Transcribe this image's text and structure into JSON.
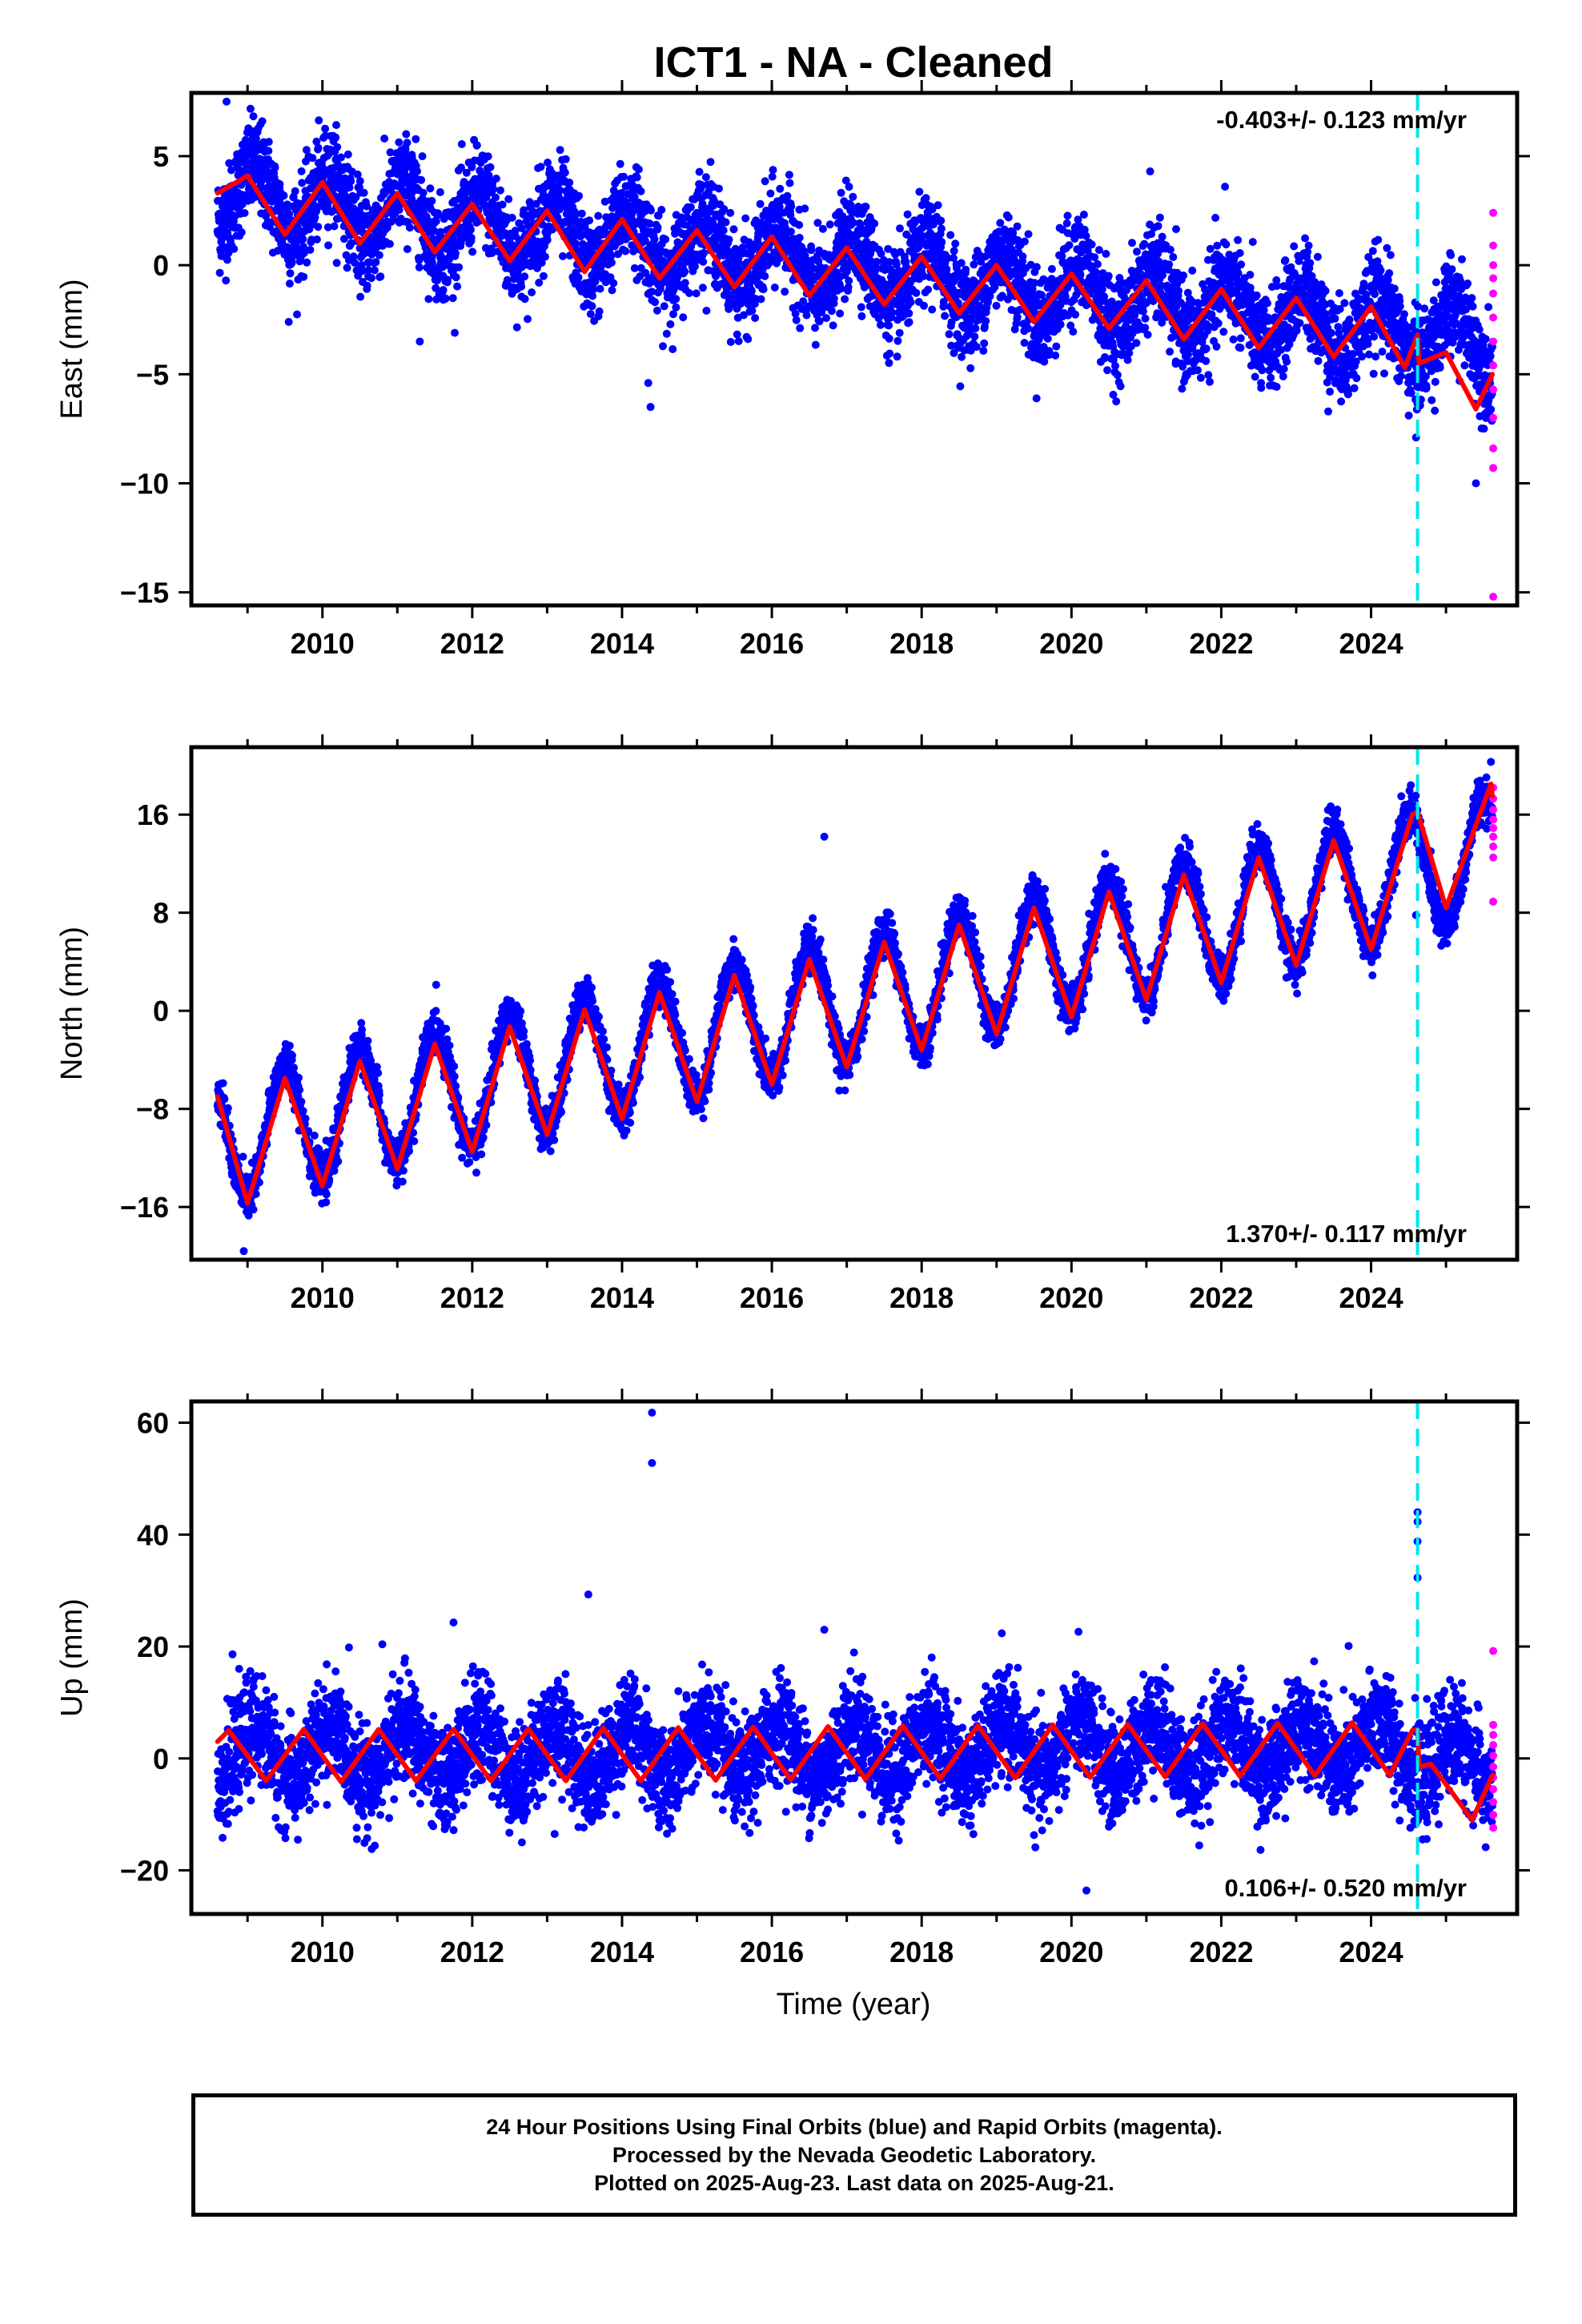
{
  "colors": {
    "final_points": "#0000ff",
    "rapid_points": "#ff00ff",
    "model_fit": "#ff0000",
    "event_line": "#00e5ee",
    "frame": "#000000"
  },
  "chart_data": {
    "type": "scatter",
    "title": "ICT1  - NA - Cleaned",
    "xlabel": "Time (year)",
    "x_ticks": [
      "2010",
      "2012",
      "2014",
      "2016",
      "2018",
      "2020",
      "2022",
      "2024"
    ],
    "xlim": [
      2008.25,
      2025.95
    ],
    "event_line_x": 2024.62,
    "panels": [
      {
        "name": "east",
        "ylabel": "East (mm)",
        "ylim": [
          -15.6,
          7.9
        ],
        "y_ticks": [
          5,
          0,
          -5,
          -10,
          -15
        ],
        "y_tick_labels": [
          "5",
          "0",
          "−5",
          "−10",
          "−15"
        ],
        "rate_label": "-0.403+/- 0.123 mm/yr",
        "rate_position": "top-right",
        "trend_start": 3.3,
        "trend_rate_per_year": -0.403,
        "annual_amplitude": 1.4,
        "annual_phase_year_fraction": 0.1,
        "scatter_sd": 1.1,
        "model_fit": [
          [
            2008.6,
            3.3
          ],
          [
            2009.0,
            4.1
          ],
          [
            2009.5,
            1.4
          ],
          [
            2010.0,
            3.8
          ],
          [
            2010.5,
            1.0
          ],
          [
            2011.0,
            3.3
          ],
          [
            2011.5,
            0.6
          ],
          [
            2012.0,
            2.8
          ],
          [
            2012.5,
            0.2
          ],
          [
            2013.0,
            2.5
          ],
          [
            2013.5,
            -0.3
          ],
          [
            2014.0,
            2.1
          ],
          [
            2014.5,
            -0.6
          ],
          [
            2015.0,
            1.6
          ],
          [
            2015.5,
            -1.0
          ],
          [
            2016.0,
            1.3
          ],
          [
            2016.5,
            -1.4
          ],
          [
            2017.0,
            0.8
          ],
          [
            2017.5,
            -1.8
          ],
          [
            2018.0,
            0.4
          ],
          [
            2018.5,
            -2.2
          ],
          [
            2019.0,
            0.0
          ],
          [
            2019.5,
            -2.6
          ],
          [
            2020.0,
            -0.4
          ],
          [
            2020.5,
            -2.9
          ],
          [
            2021.0,
            -0.7
          ],
          [
            2021.5,
            -3.4
          ],
          [
            2022.0,
            -1.1
          ],
          [
            2022.5,
            -3.8
          ],
          [
            2023.0,
            -1.5
          ],
          [
            2023.5,
            -4.2
          ],
          [
            2024.0,
            -1.9
          ],
          [
            2024.45,
            -4.7
          ],
          [
            2024.62,
            -3.2
          ],
          [
            2024.64,
            -4.5
          ],
          [
            2025.0,
            -4.0
          ],
          [
            2025.4,
            -6.6
          ],
          [
            2025.62,
            -5.0
          ]
        ],
        "rapid_points": [
          [
            2025.63,
            2.4
          ],
          [
            2025.63,
            0.9
          ],
          [
            2025.63,
            0.0
          ],
          [
            2025.63,
            -0.6
          ],
          [
            2025.63,
            -1.3
          ],
          [
            2025.63,
            -2.4
          ],
          [
            2025.63,
            -3.5
          ],
          [
            2025.63,
            -4.6
          ],
          [
            2025.63,
            -5.7
          ],
          [
            2025.63,
            -7.0
          ],
          [
            2025.63,
            -8.4
          ],
          [
            2025.63,
            -9.3
          ],
          [
            2025.63,
            -15.2
          ]
        ],
        "outliers": [
          [
            2008.72,
            7.5
          ],
          [
            2014.35,
            -5.4
          ],
          [
            2014.38,
            -6.5
          ],
          [
            2011.3,
            -3.5
          ],
          [
            2021.05,
            4.3
          ],
          [
            2022.05,
            3.6
          ],
          [
            2024.6,
            -7.9
          ],
          [
            2023.45,
            -5.8
          ],
          [
            2025.4,
            -10.0
          ],
          [
            2009.55,
            -2.6
          ]
        ]
      },
      {
        "name": "north",
        "ylabel": "North (mm)",
        "ylim": [
          -20.3,
          21.5
        ],
        "y_ticks": [
          16,
          8,
          0,
          -8,
          -16
        ],
        "y_tick_labels": [
          "16",
          "8",
          "0",
          "−8",
          "−16"
        ],
        "rate_label": "1.370+/- 0.117 mm/yr",
        "rate_position": "bottom-right",
        "trend_start": -10.7,
        "trend_rate_per_year": 1.37,
        "annual_amplitude": 5.0,
        "annual_phase_year_fraction": 0.5,
        "scatter_sd": 0.9,
        "model_fit": [
          [
            2008.6,
            -7.0
          ],
          [
            2009.0,
            -15.7
          ],
          [
            2009.5,
            -5.5
          ],
          [
            2010.0,
            -14.3
          ],
          [
            2010.5,
            -4.1
          ],
          [
            2011.0,
            -12.9
          ],
          [
            2011.5,
            -2.7
          ],
          [
            2012.0,
            -11.5
          ],
          [
            2012.5,
            -1.3
          ],
          [
            2013.0,
            -10.1
          ],
          [
            2013.5,
            0.1
          ],
          [
            2014.0,
            -8.8
          ],
          [
            2014.5,
            1.5
          ],
          [
            2015.0,
            -7.4
          ],
          [
            2015.5,
            2.9
          ],
          [
            2016.0,
            -6.0
          ],
          [
            2016.5,
            4.2
          ],
          [
            2017.0,
            -4.6
          ],
          [
            2017.5,
            5.6
          ],
          [
            2018.0,
            -3.2
          ],
          [
            2018.5,
            7.0
          ],
          [
            2019.0,
            -1.9
          ],
          [
            2019.5,
            8.4
          ],
          [
            2020.0,
            -0.5
          ],
          [
            2020.5,
            9.7
          ],
          [
            2021.0,
            0.9
          ],
          [
            2021.5,
            11.1
          ],
          [
            2022.0,
            2.3
          ],
          [
            2022.5,
            12.5
          ],
          [
            2023.0,
            3.7
          ],
          [
            2023.5,
            13.9
          ],
          [
            2024.0,
            5.0
          ],
          [
            2024.55,
            16.0
          ],
          [
            2024.62,
            16.2
          ],
          [
            2025.0,
            8.4
          ],
          [
            2025.6,
            18.5
          ],
          [
            2025.62,
            17.5
          ]
        ],
        "rapid_points": [
          [
            2025.63,
            18.2
          ],
          [
            2025.63,
            17.3
          ],
          [
            2025.63,
            16.4
          ],
          [
            2025.63,
            15.6
          ],
          [
            2025.63,
            14.9
          ],
          [
            2025.63,
            14.2
          ],
          [
            2025.63,
            13.4
          ],
          [
            2025.63,
            12.5
          ],
          [
            2025.63,
            8.9
          ]
        ],
        "outliers": [
          [
            2016.7,
            14.2
          ],
          [
            2008.95,
            -19.6
          ],
          [
            2016.9,
            -6.5
          ],
          [
            2024.6,
            7.8
          ],
          [
            2025.6,
            20.3
          ]
        ]
      },
      {
        "name": "up",
        "ylabel": "Up (mm)",
        "ylim": [
          -27.8,
          63.8
        ],
        "y_ticks": [
          60,
          40,
          20,
          0,
          -20
        ],
        "y_tick_labels": [
          "60",
          "40",
          "20",
          "0",
          "−20"
        ],
        "rate_label": "0.106+/- 0.520 mm/yr",
        "rate_position": "bottom-right",
        "trend_start": 0.5,
        "trend_rate_per_year": 0.106,
        "annual_amplitude": 4.8,
        "annual_phase_year_fraction": 0.1,
        "scatter_sd": 4.5,
        "model_fit": [
          [
            2008.6,
            3.0
          ],
          [
            2008.75,
            5.0
          ],
          [
            2009.25,
            -4.0
          ],
          [
            2009.75,
            5.2
          ],
          [
            2010.25,
            -4.2
          ],
          [
            2010.75,
            5.2
          ],
          [
            2011.25,
            -4.0
          ],
          [
            2011.75,
            5.2
          ],
          [
            2012.25,
            -4.0
          ],
          [
            2012.75,
            5.3
          ],
          [
            2013.25,
            -4.0
          ],
          [
            2013.75,
            5.4
          ],
          [
            2014.25,
            -4.0
          ],
          [
            2014.75,
            5.5
          ],
          [
            2015.25,
            -3.9
          ],
          [
            2015.75,
            5.6
          ],
          [
            2016.25,
            -3.8
          ],
          [
            2016.75,
            5.7
          ],
          [
            2017.25,
            -3.7
          ],
          [
            2017.75,
            5.8
          ],
          [
            2018.25,
            -3.6
          ],
          [
            2018.75,
            5.9
          ],
          [
            2019.25,
            -3.5
          ],
          [
            2019.75,
            6.0
          ],
          [
            2020.25,
            -3.4
          ],
          [
            2020.75,
            6.1
          ],
          [
            2021.25,
            -3.3
          ],
          [
            2021.75,
            6.2
          ],
          [
            2022.25,
            -3.2
          ],
          [
            2022.75,
            6.3
          ],
          [
            2023.25,
            -3.1
          ],
          [
            2023.75,
            6.4
          ],
          [
            2024.25,
            -3.0
          ],
          [
            2024.55,
            5.0
          ],
          [
            2024.62,
            5.2
          ],
          [
            2024.64,
            -1.5
          ],
          [
            2024.8,
            -1.0
          ],
          [
            2025.35,
            -11.0
          ],
          [
            2025.62,
            -3.0
          ]
        ],
        "rapid_points": [
          [
            2025.63,
            19.2
          ],
          [
            2025.63,
            6.0
          ],
          [
            2025.63,
            4.2
          ],
          [
            2025.63,
            2.4
          ],
          [
            2025.63,
            0.5
          ],
          [
            2025.63,
            -1.5
          ],
          [
            2025.63,
            -3.4
          ],
          [
            2025.63,
            -5.5
          ],
          [
            2025.63,
            -7.8
          ],
          [
            2025.63,
            -10.1
          ],
          [
            2025.63,
            -12.4
          ]
        ],
        "outliers": [
          [
            2014.4,
            61.8
          ],
          [
            2014.4,
            52.8
          ],
          [
            2024.62,
            44.0
          ],
          [
            2024.62,
            42.3
          ],
          [
            2024.62,
            38.8
          ],
          [
            2024.62,
            32.3
          ],
          [
            2013.55,
            29.3
          ],
          [
            2011.75,
            24.3
          ],
          [
            2010.8,
            20.4
          ],
          [
            2020.2,
            -23.6
          ],
          [
            2013.1,
            -13.5
          ],
          [
            2023.7,
            20.1
          ],
          [
            2016.7,
            23.0
          ],
          [
            2008.8,
            18.6
          ]
        ]
      }
    ]
  },
  "footer": {
    "line1": "24 Hour Positions Using Final Orbits (blue) and Rapid Orbits (magenta).",
    "line2": "Processed by the Nevada Geodetic Laboratory.",
    "line3": "Plotted on 2025-Aug-23. Last data on 2025-Aug-21."
  }
}
